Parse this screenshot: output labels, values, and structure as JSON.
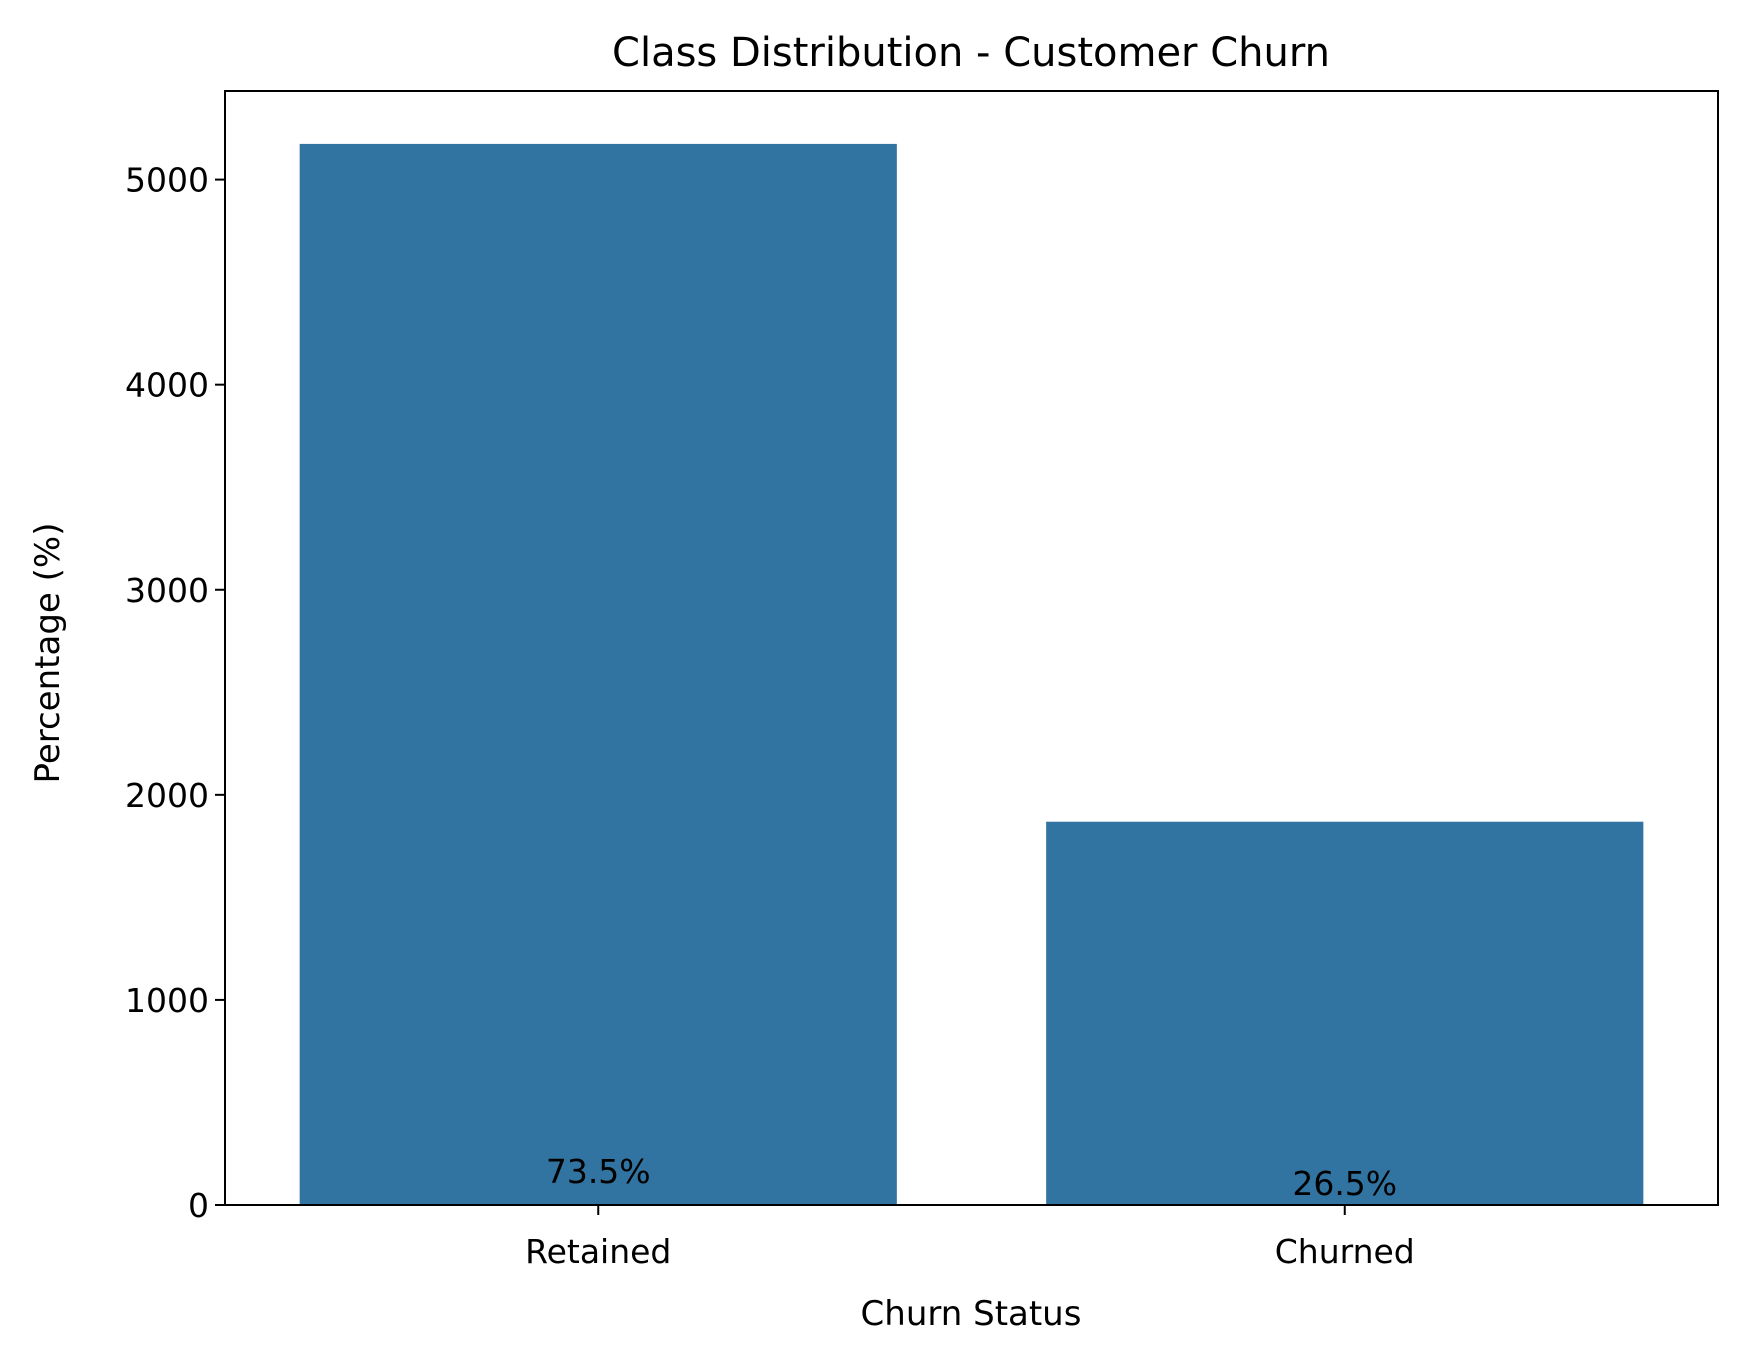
{
  "chart_data": {
    "type": "bar",
    "title": "Class Distribution - Customer Churn",
    "xlabel": "Churn Status",
    "ylabel": "Percentage (%)",
    "categories": [
      "Retained",
      "Churned"
    ],
    "values": [
      5174,
      1869
    ],
    "data_labels": [
      "73.5%",
      "26.5%"
    ],
    "ylim": [
      0,
      5432
    ],
    "yticks": [
      0,
      1000,
      2000,
      3000,
      4000,
      5000
    ],
    "ytick_labels": [
      "0",
      "1000",
      "2000",
      "3000",
      "4000",
      "5000"
    ],
    "bar_color": "#3274a1",
    "grid": false,
    "legend": "none"
  }
}
